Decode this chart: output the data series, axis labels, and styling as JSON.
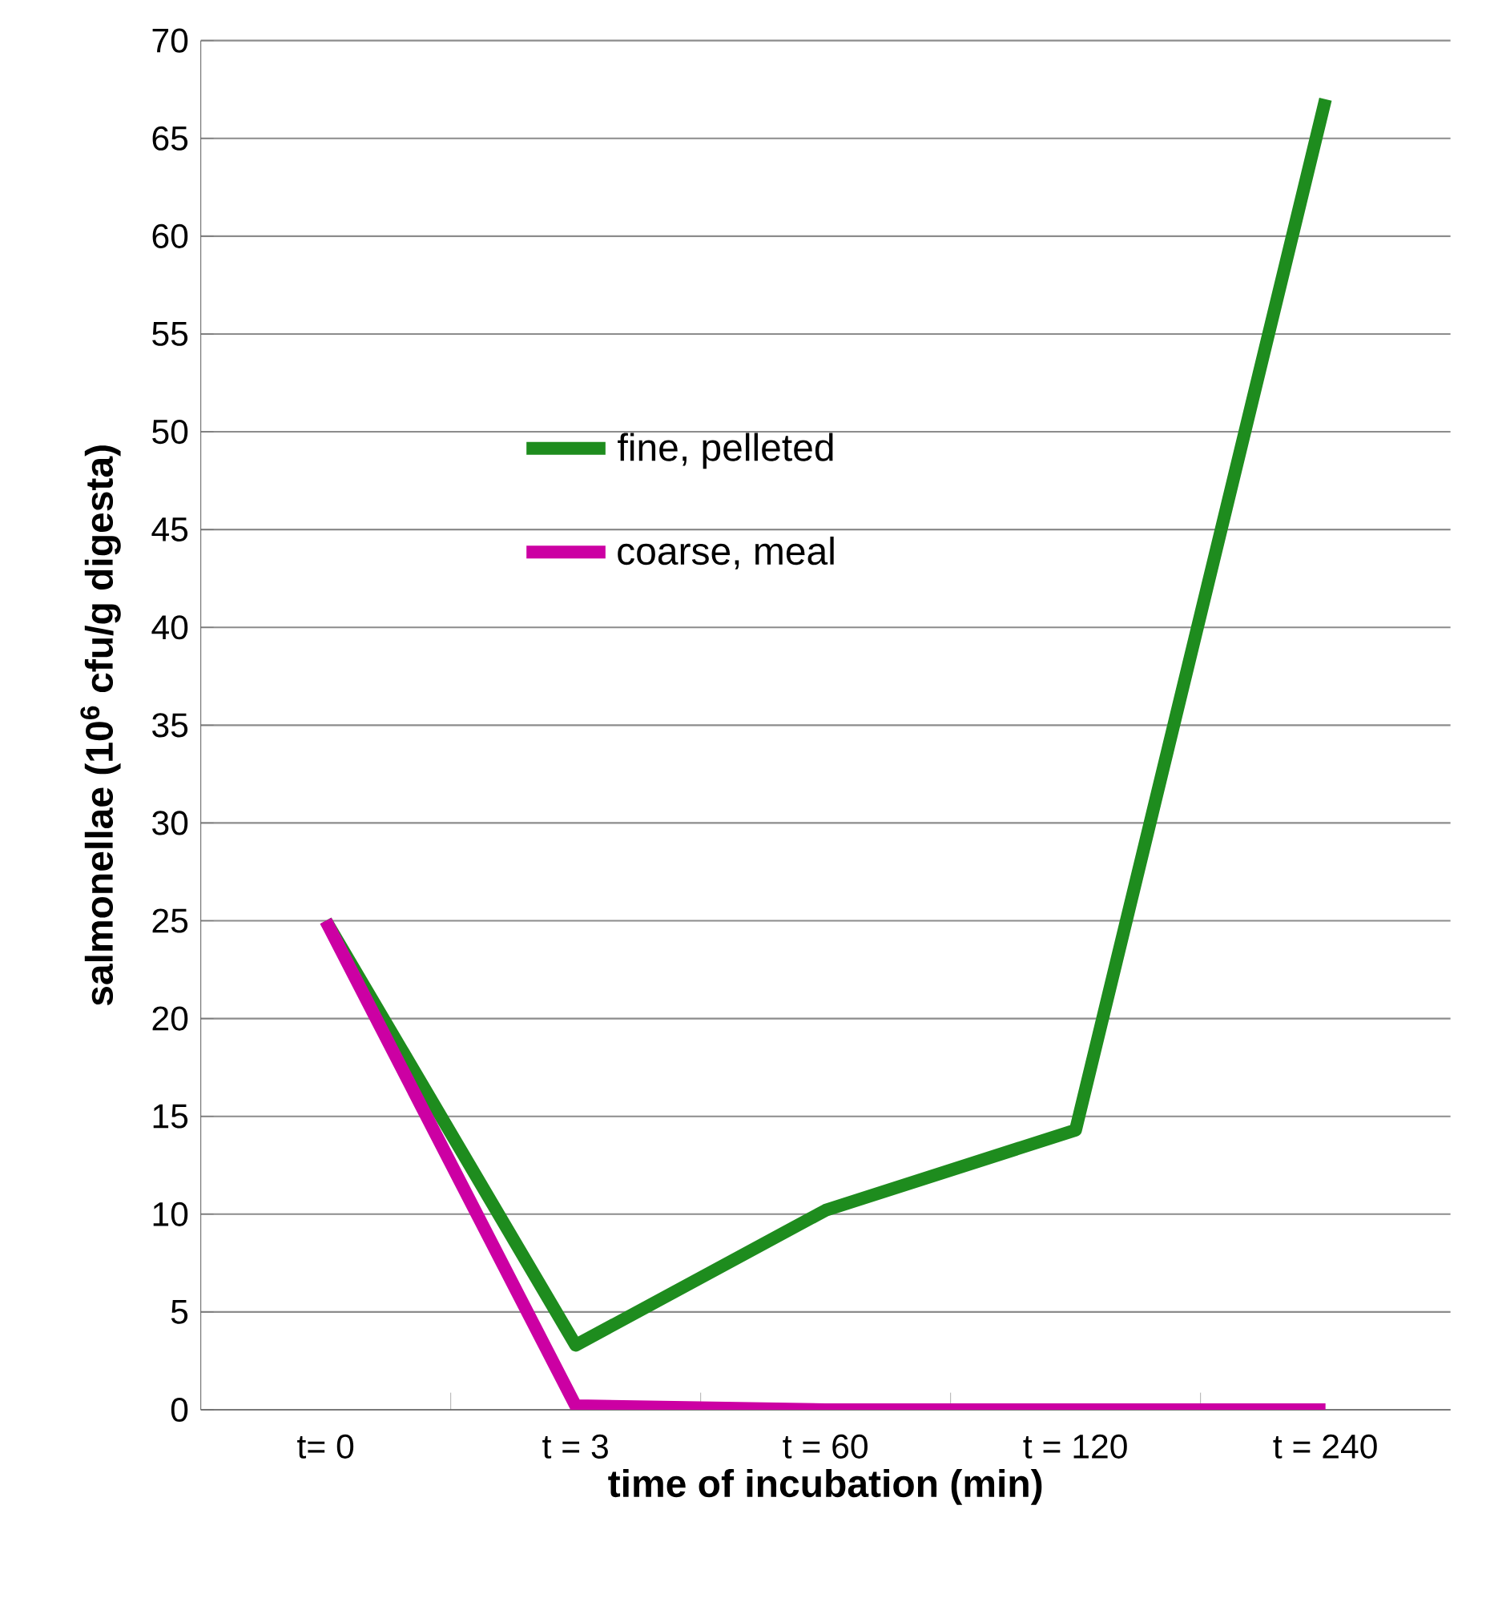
{
  "chart_data": {
    "type": "line",
    "xlabel": "time of incubation (min)",
    "ylabel": "salmonellae (10$^{6}$ cfu/g digesta)",
    "categories": [
      "t= 0",
      "t = 3",
      "t = 60",
      "t = 120",
      "t = 240"
    ],
    "series": [
      {
        "name": "fine, pelleted",
        "color": "#1e8c1e",
        "values": [
          25,
          3.3,
          10.2,
          14.3,
          67
        ]
      },
      {
        "name": "coarse, meal",
        "color": "#cc00a3",
        "values": [
          25,
          0.2,
          0,
          0,
          0
        ]
      }
    ],
    "ylim": [
      0,
      70
    ],
    "yticks": [
      0,
      5,
      10,
      15,
      20,
      25,
      30,
      35,
      40,
      45,
      50,
      55,
      60,
      65,
      70
    ],
    "grid": "y",
    "legend": "center"
  }
}
